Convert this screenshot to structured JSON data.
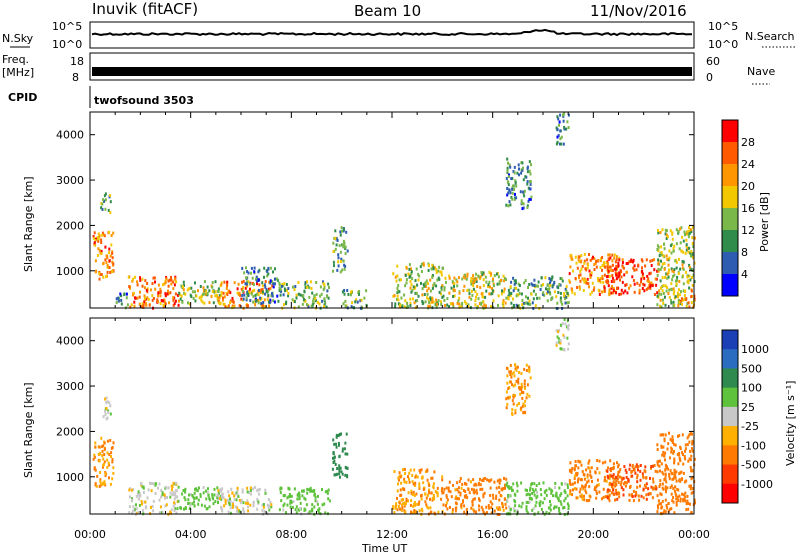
{
  "header": {
    "station": "Inuvik (fitACF)",
    "beam": "Beam 10",
    "date": "11/Nov/2016"
  },
  "top_panels": {
    "nsky": {
      "label": "N.Sky",
      "right_label": "N.Search",
      "left_ticks": [
        "10^5",
        "10^0"
      ],
      "right_ticks": [
        "10^5",
        "10^0"
      ]
    },
    "freq": {
      "label_line1": "Freq.",
      "label_line2": "[MHz]",
      "left_ticks": [
        "18",
        "8"
      ],
      "right_ticks": [
        "60",
        "0"
      ],
      "right_label": "Nave"
    },
    "cpid": {
      "label": "CPID",
      "value": "twofsound 3503"
    }
  },
  "x_axis": {
    "label": "Time UT",
    "ticks": [
      "00:00",
      "04:00",
      "08:00",
      "12:00",
      "16:00",
      "20:00",
      "00:00"
    ]
  },
  "power_colorbar": {
    "title": "Power [dB]",
    "ticks": [
      "28",
      "24",
      "20",
      "16",
      "12",
      "8",
      "4"
    ],
    "colors": [
      "#ff0000",
      "#ff5a00",
      "#ff9600",
      "#f2c800",
      "#7ab84a",
      "#2f8c4a",
      "#2d5cb0",
      "#0000ff"
    ]
  },
  "velocity_colorbar": {
    "title": "Velocity [m s⁻¹]",
    "ticks": [
      "1000",
      "500",
      "100",
      "25",
      "-25",
      "-100",
      "-500",
      "-1000"
    ],
    "colors": [
      "#1b3fb5",
      "#2a6cc0",
      "#2e8a4e",
      "#5fc23c",
      "#c8c8c8",
      "#ffb000",
      "#ff7a00",
      "#ff3a00",
      "#ff0000"
    ]
  },
  "chart_data": [
    {
      "type": "heatmap",
      "name": "power",
      "ylabel": "Slant Range [km]",
      "xlabel": "Time UT",
      "xlim": [
        0,
        24
      ],
      "ylim": [
        180,
        4500
      ],
      "yticks": [
        1000,
        2000,
        3000,
        4000
      ],
      "colorbar_label": "Power [dB]",
      "clim": [
        0,
        30
      ],
      "blobs": [
        {
          "t": [
            0.1,
            0.9
          ],
          "r": [
            800,
            1900
          ],
          "level": 22
        },
        {
          "t": [
            0.4,
            0.8
          ],
          "r": [
            2300,
            2800
          ],
          "level": 10
        },
        {
          "t": [
            1.5,
            3.5
          ],
          "r": [
            200,
            900
          ],
          "level": 24
        },
        {
          "t": [
            1.0,
            1.5
          ],
          "r": [
            200,
            600
          ],
          "level": 6
        },
        {
          "t": [
            3.5,
            5.2
          ],
          "r": [
            300,
            800
          ],
          "level": 14
        },
        {
          "t": [
            5.0,
            7.2
          ],
          "r": [
            200,
            800
          ],
          "level": 22
        },
        {
          "t": [
            6.0,
            7.5
          ],
          "r": [
            300,
            1100
          ],
          "level": 8
        },
        {
          "t": [
            7.5,
            9.5
          ],
          "r": [
            200,
            800
          ],
          "level": 12
        },
        {
          "t": [
            9.6,
            10.2
          ],
          "r": [
            1000,
            2000
          ],
          "level": 10
        },
        {
          "t": [
            10.0,
            11.0
          ],
          "r": [
            200,
            600
          ],
          "level": 10
        },
        {
          "t": [
            12.0,
            14.0
          ],
          "r": [
            200,
            1200
          ],
          "level": 14
        },
        {
          "t": [
            14.0,
            16.5
          ],
          "r": [
            200,
            1000
          ],
          "level": 16
        },
        {
          "t": [
            16.5,
            19.0
          ],
          "r": [
            200,
            900
          ],
          "level": 10
        },
        {
          "t": [
            19.0,
            21.0
          ],
          "r": [
            500,
            1400
          ],
          "level": 22
        },
        {
          "t": [
            20.5,
            22.5
          ],
          "r": [
            500,
            1300
          ],
          "level": 28
        },
        {
          "t": [
            22.5,
            24.0
          ],
          "r": [
            200,
            2000
          ],
          "level": 14
        },
        {
          "t": [
            23.3,
            24.0
          ],
          "r": [
            200,
            600
          ],
          "level": 22
        },
        {
          "t": [
            16.5,
            17.5
          ],
          "r": [
            2400,
            3500
          ],
          "level": 8
        },
        {
          "t": [
            18.5,
            19.0
          ],
          "r": [
            3800,
            4500
          ],
          "level": 8
        }
      ]
    },
    {
      "type": "heatmap",
      "name": "velocity",
      "ylabel": "Slant Range [km]",
      "xlabel": "Time UT",
      "xlim": [
        0,
        24
      ],
      "ylim": [
        180,
        4500
      ],
      "yticks": [
        1000,
        2000,
        3000,
        4000
      ],
      "colorbar_label": "Velocity [m s⁻¹]",
      "clim": [
        -1000,
        1000
      ],
      "blobs": [
        {
          "t": [
            0.1,
            0.9
          ],
          "r": [
            800,
            1900
          ],
          "level": -100
        },
        {
          "t": [
            0.4,
            0.8
          ],
          "r": [
            2300,
            2800
          ],
          "level": 0
        },
        {
          "t": [
            1.5,
            3.5
          ],
          "r": [
            200,
            900
          ],
          "level": 0
        },
        {
          "t": [
            3.5,
            5.2
          ],
          "r": [
            300,
            800
          ],
          "level": 60
        },
        {
          "t": [
            5.0,
            7.2
          ],
          "r": [
            200,
            800
          ],
          "level": 0
        },
        {
          "t": [
            7.5,
            9.5
          ],
          "r": [
            200,
            800
          ],
          "level": 60
        },
        {
          "t": [
            9.6,
            10.2
          ],
          "r": [
            1000,
            2000
          ],
          "level": 300
        },
        {
          "t": [
            12.0,
            14.0
          ],
          "r": [
            200,
            1200
          ],
          "level": -100
        },
        {
          "t": [
            14.0,
            16.5
          ],
          "r": [
            200,
            1000
          ],
          "level": -200
        },
        {
          "t": [
            16.5,
            19.0
          ],
          "r": [
            200,
            900
          ],
          "level": 60
        },
        {
          "t": [
            19.0,
            21.0
          ],
          "r": [
            500,
            1400
          ],
          "level": -200
        },
        {
          "t": [
            20.5,
            22.5
          ],
          "r": [
            500,
            1300
          ],
          "level": -500
        },
        {
          "t": [
            22.5,
            24.0
          ],
          "r": [
            200,
            2000
          ],
          "level": -300
        },
        {
          "t": [
            16.5,
            17.5
          ],
          "r": [
            2400,
            3500
          ],
          "level": -100
        },
        {
          "t": [
            18.5,
            19.0
          ],
          "r": [
            3800,
            4500
          ],
          "level": 0
        }
      ]
    }
  ]
}
